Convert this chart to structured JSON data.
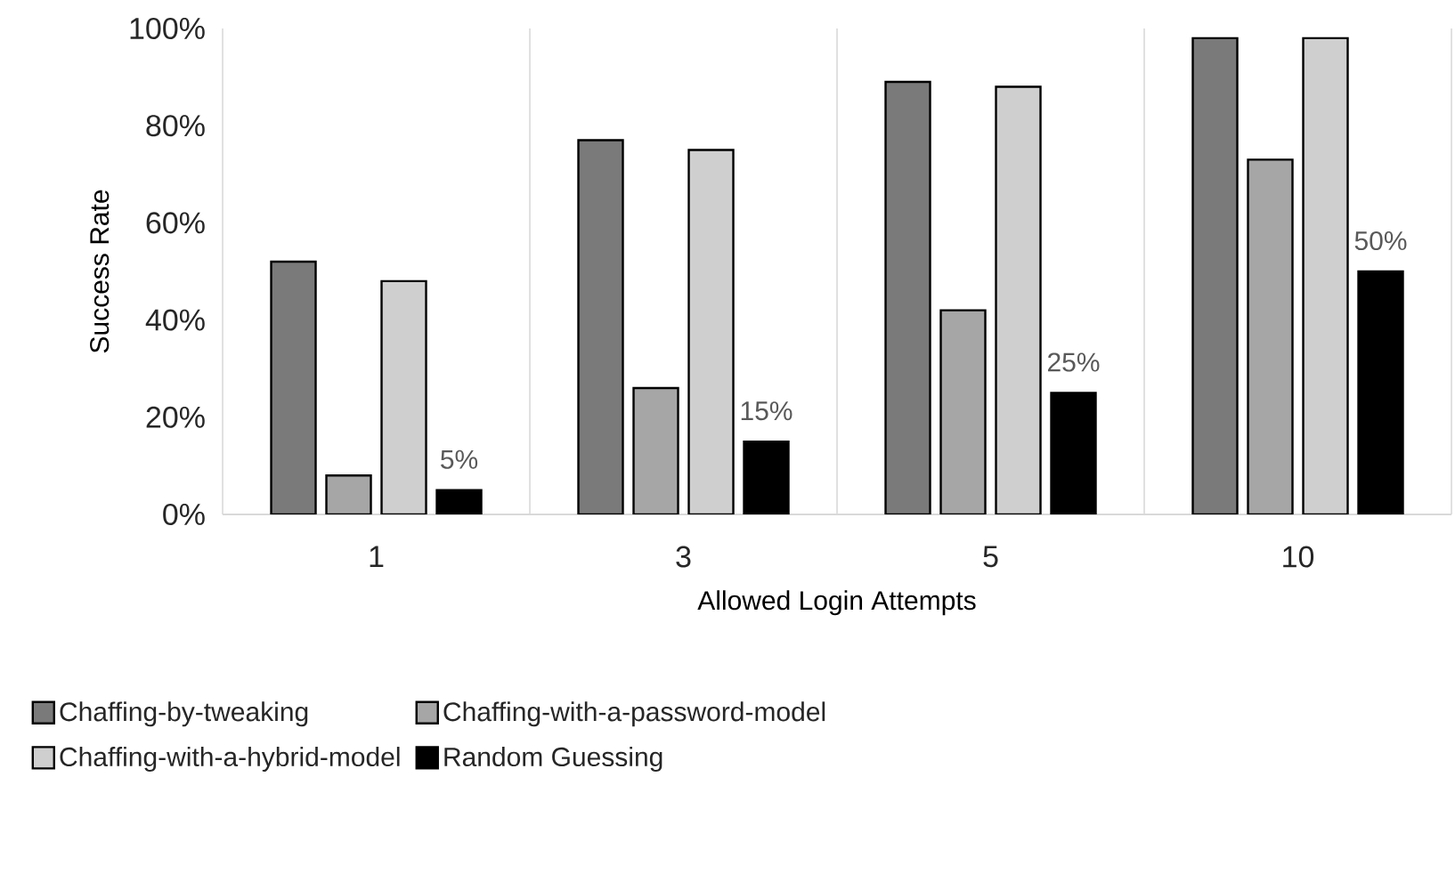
{
  "chart_data": {
    "type": "bar",
    "xlabel": "Allowed Login Attempts",
    "ylabel": "Success Rate",
    "categories": [
      "1",
      "3",
      "5",
      "10"
    ],
    "series": [
      {
        "name": "Chaffing-by-tweaking",
        "color": "#7a7a7a",
        "values": [
          52,
          77,
          89,
          98
        ]
      },
      {
        "name": "Chaffing-with-a-password-model",
        "color": "#a6a6a6",
        "values": [
          8,
          26,
          42,
          73
        ]
      },
      {
        "name": "Chaffing-with-a-hybrid-model",
        "color": "#cfcfcf",
        "values": [
          48,
          75,
          88,
          98
        ]
      },
      {
        "name": "Random Guessing",
        "color": "#000000",
        "values": [
          5,
          15,
          25,
          50
        ],
        "value_labels": [
          "5%",
          "15%",
          "25%",
          "50%"
        ]
      }
    ],
    "ylim": [
      0,
      100
    ],
    "yticks": [
      {
        "value": 0,
        "label": "0%"
      },
      {
        "value": 20,
        "label": "20%"
      },
      {
        "value": 40,
        "label": "40%"
      },
      {
        "value": 60,
        "label": "60%"
      },
      {
        "value": 80,
        "label": "80%"
      },
      {
        "value": 100,
        "label": "100%"
      }
    ],
    "grid": "x",
    "legend": "bottom"
  }
}
